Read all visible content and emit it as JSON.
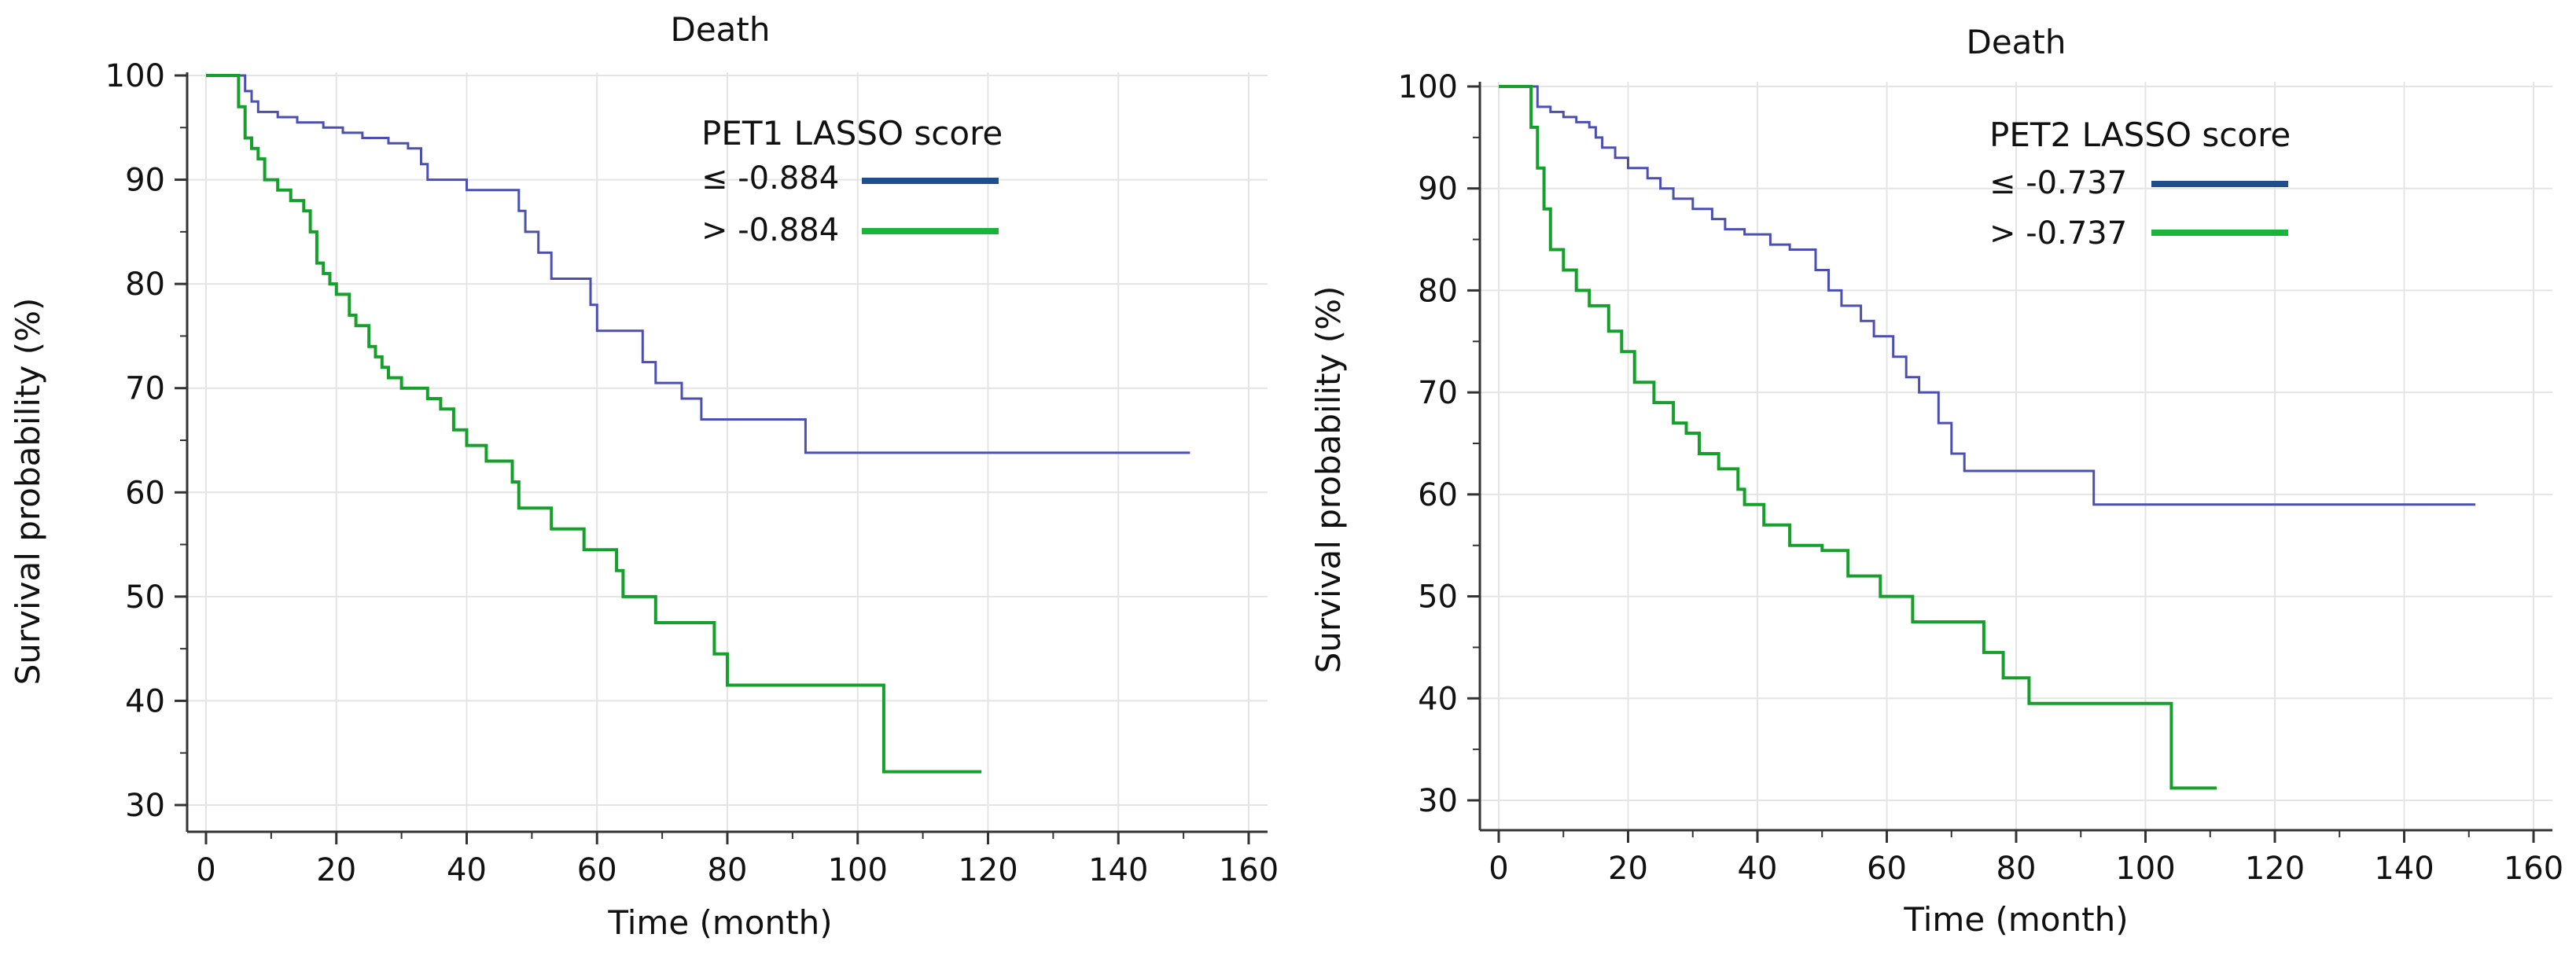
{
  "chart_data": [
    {
      "type": "line",
      "title": "Death",
      "xlabel": "Time (month)",
      "ylabel": "Survival probability (%)",
      "xlim": [
        0,
        160
      ],
      "ylim": [
        30,
        100
      ],
      "xticks": [
        "0",
        "20",
        "40",
        "60",
        "80",
        "100",
        "120",
        "140",
        "160"
      ],
      "yticks": [
        "30",
        "40",
        "50",
        "60",
        "70",
        "80",
        "90",
        "100"
      ],
      "grid": true,
      "legend_title": "PET1 LASSO score",
      "legend_position": "top-right",
      "series": [
        {
          "name": "≤  -0.884",
          "color": "#4a4fb0",
          "legend_color": "#1f4e8c",
          "points": [
            [
              0,
              100
            ],
            [
              5,
              100
            ],
            [
              6,
              98.5
            ],
            [
              7,
              97.5
            ],
            [
              8,
              96.5
            ],
            [
              11,
              96
            ],
            [
              14,
              95.5
            ],
            [
              18,
              95
            ],
            [
              21,
              94.5
            ],
            [
              24,
              94
            ],
            [
              28,
              93.5
            ],
            [
              31,
              93
            ],
            [
              33,
              91.5
            ],
            [
              34,
              90
            ],
            [
              40,
              89
            ],
            [
              48,
              87
            ],
            [
              49,
              85
            ],
            [
              51,
              83
            ],
            [
              53,
              80.5
            ],
            [
              59,
              78
            ],
            [
              60,
              75.5
            ],
            [
              67,
              72.5
            ],
            [
              69,
              70.5
            ],
            [
              73,
              69
            ],
            [
              76,
              67
            ],
            [
              92,
              63.8
            ],
            [
              151,
              63.8
            ]
          ]
        },
        {
          "name": ">  -0.884",
          "color": "#14a02a",
          "legend_color": "#19b43a",
          "points": [
            [
              0,
              100
            ],
            [
              4,
              100
            ],
            [
              5,
              97
            ],
            [
              6,
              94
            ],
            [
              7,
              93
            ],
            [
              8,
              92
            ],
            [
              9,
              90
            ],
            [
              11,
              89
            ],
            [
              13,
              88
            ],
            [
              15,
              87
            ],
            [
              16,
              85
            ],
            [
              17,
              82
            ],
            [
              18,
              81
            ],
            [
              19,
              80
            ],
            [
              20,
              79
            ],
            [
              22,
              77
            ],
            [
              23,
              76
            ],
            [
              25,
              74
            ],
            [
              26,
              73
            ],
            [
              27,
              72
            ],
            [
              28,
              71
            ],
            [
              30,
              70
            ],
            [
              34,
              69
            ],
            [
              36,
              68
            ],
            [
              38,
              66
            ],
            [
              40,
              64.5
            ],
            [
              43,
              63
            ],
            [
              47,
              61
            ],
            [
              48,
              58.5
            ],
            [
              53,
              56.5
            ],
            [
              58,
              54.5
            ],
            [
              63,
              52.5
            ],
            [
              64,
              50
            ],
            [
              69,
              47.5
            ],
            [
              78,
              44.5
            ],
            [
              80,
              41.5
            ],
            [
              104,
              33.2
            ],
            [
              119,
              33.2
            ]
          ]
        }
      ]
    },
    {
      "type": "line",
      "title": "Death",
      "xlabel": "Time (month)",
      "ylabel": "Survival probability (%)",
      "xlim": [
        0,
        160
      ],
      "ylim": [
        30,
        100
      ],
      "xticks": [
        "0",
        "20",
        "40",
        "60",
        "80",
        "100",
        "120",
        "140",
        "160"
      ],
      "yticks": [
        "30",
        "40",
        "50",
        "60",
        "70",
        "80",
        "90",
        "100"
      ],
      "grid": true,
      "legend_title": "PET2 LASSO score",
      "legend_position": "top-right",
      "series": [
        {
          "name": "≤  -0.737",
          "color": "#4a4fb0",
          "legend_color": "#1f4e8c",
          "points": [
            [
              0,
              100
            ],
            [
              5,
              100
            ],
            [
              6,
              98
            ],
            [
              8,
              97.5
            ],
            [
              10,
              97
            ],
            [
              12,
              96.5
            ],
            [
              14,
              96
            ],
            [
              15,
              95
            ],
            [
              16,
              94
            ],
            [
              18,
              93
            ],
            [
              20,
              92
            ],
            [
              23,
              91
            ],
            [
              25,
              90
            ],
            [
              27,
              89
            ],
            [
              30,
              88
            ],
            [
              33,
              87
            ],
            [
              35,
              86
            ],
            [
              38,
              85.5
            ],
            [
              42,
              84.5
            ],
            [
              45,
              84
            ],
            [
              49,
              82
            ],
            [
              51,
              80
            ],
            [
              53,
              78.5
            ],
            [
              56,
              77
            ],
            [
              58,
              75.5
            ],
            [
              61,
              73.5
            ],
            [
              63,
              71.5
            ],
            [
              65,
              70
            ],
            [
              68,
              67
            ],
            [
              70,
              64
            ],
            [
              72,
              62.3
            ],
            [
              92,
              59
            ],
            [
              151,
              59
            ]
          ]
        },
        {
          "name": ">  -0.737",
          "color": "#14a02a",
          "legend_color": "#19b43a",
          "points": [
            [
              0,
              100
            ],
            [
              4,
              100
            ],
            [
              5,
              96
            ],
            [
              6,
              92
            ],
            [
              7,
              88
            ],
            [
              8,
              84
            ],
            [
              10,
              82
            ],
            [
              12,
              80
            ],
            [
              14,
              78.5
            ],
            [
              17,
              76
            ],
            [
              19,
              74
            ],
            [
              21,
              71
            ],
            [
              24,
              69
            ],
            [
              27,
              67
            ],
            [
              29,
              66
            ],
            [
              31,
              64
            ],
            [
              34,
              62.5
            ],
            [
              37,
              60.5
            ],
            [
              38,
              59
            ],
            [
              41,
              57
            ],
            [
              45,
              55
            ],
            [
              50,
              54.5
            ],
            [
              54,
              52
            ],
            [
              59,
              50
            ],
            [
              64,
              47.5
            ],
            [
              70,
              47.5
            ],
            [
              75,
              44.5
            ],
            [
              78,
              42
            ],
            [
              82,
              39.5
            ],
            [
              104,
              31.2
            ],
            [
              111,
              31.2
            ]
          ]
        }
      ]
    }
  ]
}
